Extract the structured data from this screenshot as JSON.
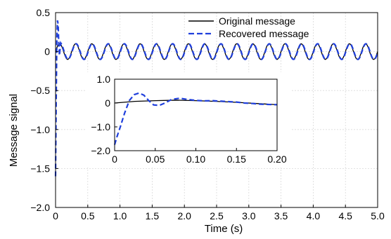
{
  "chart_data": [
    {
      "id": "main",
      "type": "line",
      "title": "",
      "xlabel": "Time (s)",
      "ylabel": "Message signal",
      "xlim": [
        0,
        5.0
      ],
      "ylim": [
        -2.0,
        0.5
      ],
      "xticks": [
        0,
        0.5,
        1.0,
        1.5,
        2.0,
        2.5,
        3.0,
        3.5,
        4.0,
        4.5,
        5.0
      ],
      "xtick_labels": [
        "0",
        "0.5",
        "1.0",
        "1.5",
        "2.0",
        "2.5",
        "3.0",
        "3.5",
        "4.0",
        "4.5",
        "5.0"
      ],
      "yticks": [
        -2.0,
        -1.5,
        -1.0,
        -0.5,
        0,
        0.5
      ],
      "ytick_labels": [
        "−2.0",
        "−1.5",
        "−1.0",
        "−0.5",
        "0",
        "0.5"
      ],
      "grid": true,
      "legend": "top-right",
      "series": [
        {
          "name": "Original message",
          "color": "#000000",
          "style": "solid",
          "x": [
            0,
            0.1,
            0.2,
            0.3,
            0.4,
            0.5,
            0.6,
            0.7,
            0.8,
            0.9,
            1.0,
            1.2,
            1.4,
            1.6,
            1.8,
            2.0,
            2.5,
            3.0,
            3.5,
            4.0,
            4.5,
            5.0
          ],
          "y": [
            0,
            0.1,
            -0.1,
            0.1,
            -0.1,
            0.1,
            -0.1,
            0.1,
            -0.1,
            0.1,
            -0.1,
            -0.1,
            -0.1,
            -0.1,
            -0.1,
            -0.1,
            0.1,
            0.1,
            -0.1,
            0.1,
            0.1,
            -0.1
          ]
        },
        {
          "name": "Recovered message",
          "color": "#1f3fdc",
          "style": "dashed",
          "x": [
            0,
            0.005,
            0.01,
            0.02,
            0.03,
            0.04,
            0.05,
            0.06,
            0.08,
            0.1,
            0.15,
            0.2,
            0.3,
            0.5,
            1.0,
            2.0,
            3.0,
            4.0,
            5.0
          ],
          "y": [
            -1.6,
            -1.1,
            -0.6,
            0.15,
            0.4,
            0.35,
            0.1,
            -0.05,
            0.05,
            0.15,
            -0.1,
            0.1,
            0.1,
            0.1,
            -0.1,
            -0.1,
            0.1,
            0.1,
            -0.1
          ]
        }
      ]
    },
    {
      "id": "inset",
      "type": "line",
      "title": "",
      "xlim": [
        0,
        0.2
      ],
      "ylim": [
        -2.0,
        1.0
      ],
      "xticks": [
        0,
        0.05,
        0.1,
        0.15,
        0.2
      ],
      "xtick_labels": [
        "0",
        "0.05",
        "0.10",
        "0.15",
        "0.20"
      ],
      "yticks": [
        -2.0,
        -1.0,
        0,
        1.0
      ],
      "ytick_labels": [
        "−2.0",
        "−1.0",
        "0",
        "1.0"
      ],
      "grid": false,
      "series": [
        {
          "name": "Original message",
          "color": "#000000",
          "style": "solid",
          "x": [
            0,
            0.025,
            0.05,
            0.075,
            0.1,
            0.125,
            0.15,
            0.175,
            0.2
          ],
          "y": [
            0,
            0.07,
            0.1,
            0.12,
            0.1,
            0.07,
            0.03,
            -0.02,
            -0.07
          ]
        },
        {
          "name": "Recovered message",
          "color": "#1f3fdc",
          "style": "dashed",
          "x": [
            0,
            0.003,
            0.007,
            0.012,
            0.018,
            0.024,
            0.03,
            0.036,
            0.042,
            0.048,
            0.055,
            0.062,
            0.07,
            0.08,
            0.09,
            0.1,
            0.11,
            0.12,
            0.13,
            0.14,
            0.15,
            0.16,
            0.17,
            0.18,
            0.19,
            0.2
          ],
          "y": [
            -1.75,
            -1.4,
            -1.0,
            -0.45,
            0.1,
            0.35,
            0.42,
            0.33,
            0.1,
            -0.08,
            -0.1,
            0.0,
            0.15,
            0.2,
            0.15,
            0.11,
            0.09,
            0.1,
            0.08,
            0.06,
            0.04,
            0.0,
            -0.02,
            -0.05,
            -0.06,
            -0.07
          ]
        }
      ]
    }
  ]
}
